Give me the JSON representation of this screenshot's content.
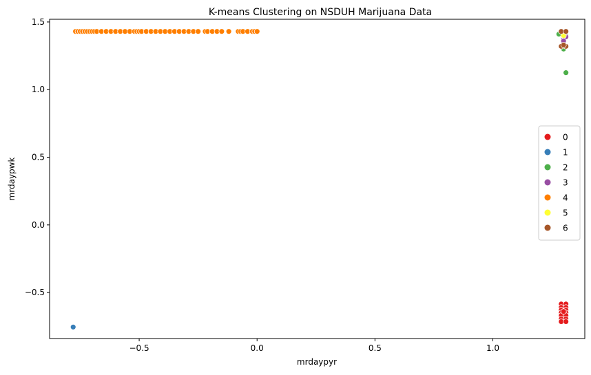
{
  "chart_data": {
    "type": "scatter",
    "title": "K-means Clustering on NSDUH Marijuana Data",
    "xlabel": "mrdaypyr",
    "ylabel": "mrdaypwk",
    "xlim": [
      -0.88,
      1.39
    ],
    "ylim": [
      -0.84,
      1.52
    ],
    "xticks": [
      -0.5,
      0.0,
      0.5,
      1.0
    ],
    "xtick_labels": [
      "−0.5",
      "0.0",
      "0.5",
      "1.0"
    ],
    "yticks": [
      -0.5,
      0.0,
      0.5,
      1.0,
      1.5
    ],
    "ytick_labels": [
      "−0.5",
      "0.0",
      "0.5",
      "1.0",
      "1.5"
    ],
    "grid": false,
    "legend_position": "center-right",
    "series": [
      {
        "name": "0",
        "color": "#e41a1c",
        "points": [
          [
            1.29,
            -0.585
          ],
          [
            1.31,
            -0.585
          ],
          [
            1.29,
            -0.61
          ],
          [
            1.31,
            -0.61
          ],
          [
            1.29,
            -0.63
          ],
          [
            1.31,
            -0.63
          ],
          [
            1.29,
            -0.65
          ],
          [
            1.31,
            -0.65
          ],
          [
            1.29,
            -0.67
          ],
          [
            1.31,
            -0.67
          ],
          [
            1.29,
            -0.695
          ],
          [
            1.31,
            -0.695
          ],
          [
            1.29,
            -0.715
          ],
          [
            1.31,
            -0.715
          ],
          [
            1.3,
            -0.64
          ]
        ]
      },
      {
        "name": "1",
        "color": "#377eb8",
        "points": [
          [
            -0.78,
            -0.755
          ]
        ]
      },
      {
        "name": "2",
        "color": "#4daf4a",
        "points": [
          [
            1.28,
            1.41
          ],
          [
            1.3,
            1.3
          ],
          [
            1.31,
            1.125
          ],
          [
            1.29,
            1.32
          ],
          [
            1.31,
            1.4
          ]
        ]
      },
      {
        "name": "3",
        "color": "#984ea3",
        "points": [
          [
            1.3,
            1.38
          ],
          [
            1.31,
            1.39
          ],
          [
            1.3,
            1.36
          ]
        ]
      },
      {
        "name": "4",
        "color": "#ff7f00",
        "points": [
          [
            -0.77,
            1.43
          ],
          [
            -0.76,
            1.43
          ],
          [
            -0.75,
            1.43
          ],
          [
            -0.74,
            1.43
          ],
          [
            -0.73,
            1.43
          ],
          [
            -0.72,
            1.43
          ],
          [
            -0.71,
            1.43
          ],
          [
            -0.7,
            1.43
          ],
          [
            -0.69,
            1.43
          ],
          [
            -0.68,
            1.43
          ],
          [
            -0.66,
            1.43
          ],
          [
            -0.64,
            1.43
          ],
          [
            -0.62,
            1.43
          ],
          [
            -0.6,
            1.43
          ],
          [
            -0.58,
            1.43
          ],
          [
            -0.56,
            1.43
          ],
          [
            -0.54,
            1.43
          ],
          [
            -0.52,
            1.43
          ],
          [
            -0.51,
            1.43
          ],
          [
            -0.5,
            1.43
          ],
          [
            -0.49,
            1.43
          ],
          [
            -0.47,
            1.43
          ],
          [
            -0.45,
            1.43
          ],
          [
            -0.43,
            1.43
          ],
          [
            -0.41,
            1.43
          ],
          [
            -0.39,
            1.43
          ],
          [
            -0.37,
            1.43
          ],
          [
            -0.35,
            1.43
          ],
          [
            -0.33,
            1.43
          ],
          [
            -0.31,
            1.43
          ],
          [
            -0.29,
            1.43
          ],
          [
            -0.27,
            1.43
          ],
          [
            -0.25,
            1.43
          ],
          [
            -0.22,
            1.43
          ],
          [
            -0.21,
            1.43
          ],
          [
            -0.19,
            1.43
          ],
          [
            -0.17,
            1.43
          ],
          [
            -0.15,
            1.43
          ],
          [
            -0.12,
            1.43
          ],
          [
            -0.08,
            1.43
          ],
          [
            -0.07,
            1.43
          ],
          [
            -0.06,
            1.43
          ],
          [
            -0.04,
            1.43
          ],
          [
            -0.02,
            1.43
          ],
          [
            -0.01,
            1.43
          ],
          [
            0.0,
            1.43
          ]
        ]
      },
      {
        "name": "5",
        "color": "#ffff33",
        "points": [
          [
            1.3,
            1.4
          ]
        ]
      },
      {
        "name": "6",
        "color": "#a65628",
        "points": [
          [
            1.29,
            1.43
          ],
          [
            1.31,
            1.43
          ],
          [
            1.29,
            1.32
          ],
          [
            1.31,
            1.32
          ],
          [
            1.3,
            1.33
          ]
        ]
      }
    ]
  }
}
